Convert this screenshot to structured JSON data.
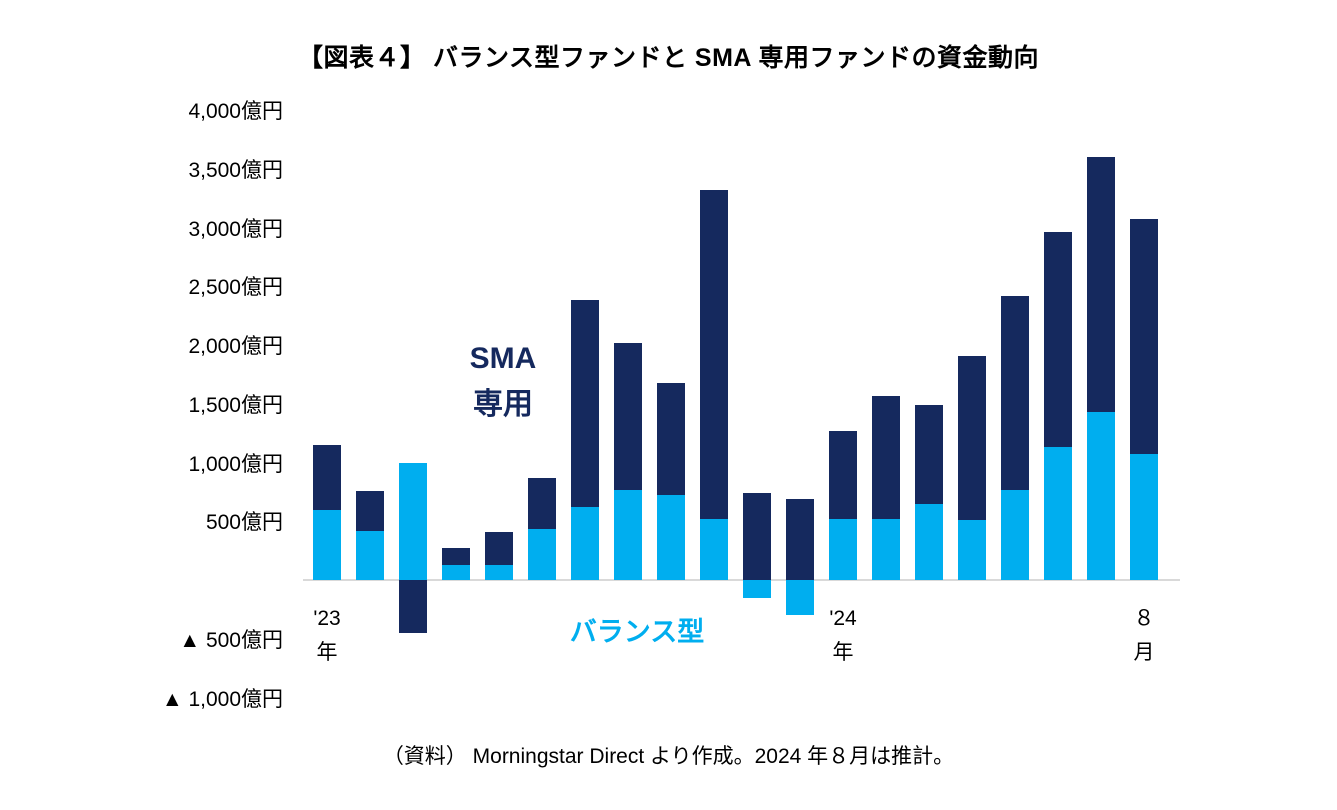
{
  "title": "【図表４】 バランス型ファンドと SMA 専用ファンドの資金動向",
  "caption": "（資料） Morningstar Direct より作成。2024 年８月は推計。",
  "series_labels": {
    "sma_line1": "SMA",
    "sma_line2": "専用",
    "balance": "バランス型"
  },
  "colors": {
    "sma_navy": "#15295E",
    "balance_blue": "#00AEEF",
    "axis_line": "#D9D9D9",
    "text": "#000000"
  },
  "chart_data": {
    "type": "bar",
    "subtype": "stacked",
    "title": "【図表４】 バランス型ファンドと SMA 専用ファンドの資金動向",
    "unit": "億円",
    "ylim": [
      -1000,
      4000
    ],
    "grid": false,
    "legend": "in-plot text labels",
    "y_ticks": [
      {
        "value": 4000,
        "label": "4,000億円"
      },
      {
        "value": 3500,
        "label": "3,500億円"
      },
      {
        "value": 3000,
        "label": "3,000億円"
      },
      {
        "value": 2500,
        "label": "2,500億円"
      },
      {
        "value": 2000,
        "label": "2,000億円"
      },
      {
        "value": 1500,
        "label": "1,500億円"
      },
      {
        "value": 1000,
        "label": "1,000億円"
      },
      {
        "value": 500,
        "label": "500億円"
      },
      {
        "value": -500,
        "label": "▲ 500億円"
      },
      {
        "value": -1000,
        "label": "▲ 1,000億円"
      }
    ],
    "x_ticks": [
      {
        "bar_index": 0,
        "line1": "'23",
        "line2": "年"
      },
      {
        "bar_index": 12,
        "line1": "'24",
        "line2": "年"
      },
      {
        "bar_index": 19,
        "line1": "８",
        "line2": "月"
      }
    ],
    "n_bars": 20,
    "series": [
      {
        "key": "balance",
        "name": "バランス型",
        "color": "#00AEEF",
        "values": [
          600,
          420,
          1000,
          130,
          130,
          430,
          620,
          770,
          720,
          520,
          -150,
          -300,
          520,
          520,
          650,
          510,
          770,
          1130,
          1430,
          1070
        ]
      },
      {
        "key": "sma",
        "name": "SMA専用",
        "color": "#15295E",
        "values": [
          550,
          340,
          -450,
          140,
          280,
          440,
          1760,
          1250,
          960,
          2800,
          740,
          690,
          750,
          1050,
          840,
          1400,
          1650,
          1830,
          2170,
          2000
        ]
      }
    ]
  }
}
